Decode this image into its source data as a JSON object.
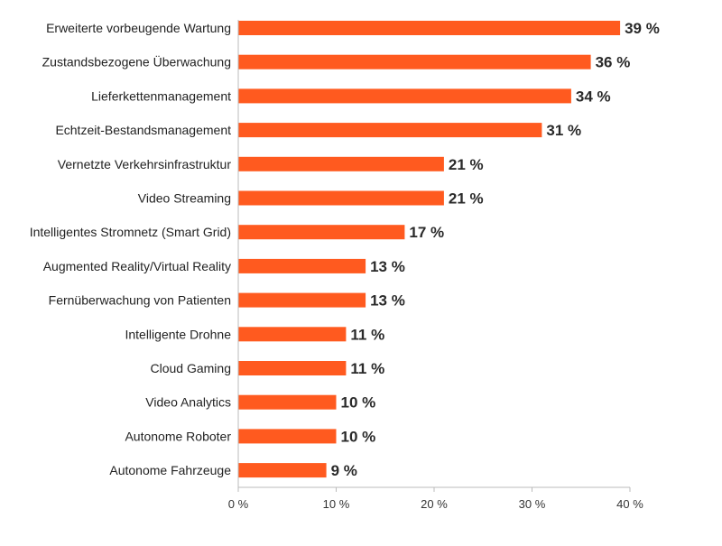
{
  "chart_data": {
    "type": "bar",
    "orientation": "horizontal",
    "categories": [
      "Erweiterte vorbeugende Wartung",
      "Zustandsbezogene Überwachung",
      "Lieferkettenmanagement",
      "Echtzeit-Bestandsmanagement",
      "Vernetzte Verkehrsinfrastruktur",
      "Video Streaming",
      "Intelligentes Stromnetz (Smart Grid)",
      "Augmented Reality/Virtual Reality",
      "Fernüberwachung von Patienten",
      "Intelligente Drohne",
      "Cloud Gaming",
      "Video Analytics",
      "Autonome Roboter",
      "Autonome Fahrzeuge"
    ],
    "values": [
      39,
      36,
      34,
      31,
      21,
      21,
      17,
      13,
      13,
      11,
      11,
      10,
      10,
      9
    ],
    "value_labels": [
      "39 %",
      "36 %",
      "34 %",
      "31 %",
      "21 %",
      "21 %",
      "17 %",
      "13 %",
      "13 %",
      "11 %",
      "11 %",
      "10 %",
      "10 %",
      "9 %"
    ],
    "xlim": [
      0,
      40
    ],
    "xticks": [
      0,
      10,
      20,
      30,
      40
    ],
    "xtick_labels": [
      "0 %",
      "10 %",
      "20 %",
      "30 %",
      "40 %"
    ],
    "title": "",
    "xlabel": "",
    "ylabel": "",
    "grid": false,
    "colors": {
      "bar": "#ff5a1f",
      "axis": "#bbbbbb",
      "text": "#222222"
    }
  }
}
